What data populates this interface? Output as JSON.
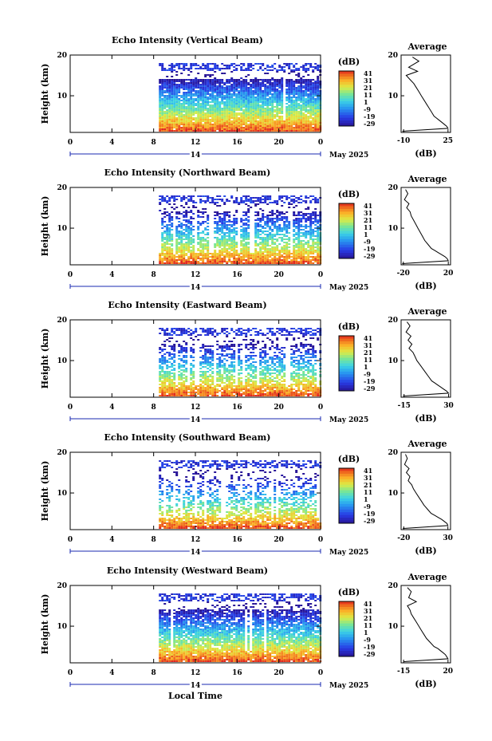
{
  "page": {
    "bottom_xlabel": "Local Time"
  },
  "chart_data": [
    {
      "type": "heatmap",
      "title": "Echo Intensity (Vertical Beam)",
      "ylabel": "Height (km)",
      "x_ticks": [
        "0",
        "4",
        "8",
        "12",
        "16",
        "20",
        "0"
      ],
      "x_range": [
        0,
        24
      ],
      "y_ticks": [
        "20",
        "10"
      ],
      "y_range": [
        1,
        20
      ],
      "date_label": "14",
      "month_label": "May 2025",
      "data_start_hour": 8.5,
      "colorbar": {
        "label": "(dB)",
        "ticks": [
          "41",
          "31",
          "21",
          "11",
          "1",
          "-9",
          "-19",
          "-29"
        ],
        "range": [
          -29,
          41
        ]
      },
      "profile": {
        "type": "line",
        "title": "Average",
        "xlabel": "(dB)",
        "x_ticks": [
          "-10",
          "25"
        ],
        "x_range": [
          -12,
          27
        ],
        "y_ticks": [
          "20",
          "10"
        ],
        "y_range": [
          1,
          20
        ],
        "x": [
          -3,
          2,
          -6,
          1,
          -8,
          -5,
          -2,
          0,
          2,
          4,
          6,
          8,
          10,
          12,
          14,
          16,
          18,
          20,
          22,
          24,
          25,
          -11
        ],
        "y": [
          19.5,
          18.5,
          17,
          16,
          15,
          14,
          13,
          12,
          11,
          10,
          9,
          8,
          7,
          6,
          5,
          4.5,
          4,
          3.5,
          3,
          2.5,
          2,
          1.3
        ]
      }
    },
    {
      "type": "heatmap",
      "title": "Echo Intensity (Northward Beam)",
      "ylabel": "Height (km)",
      "x_ticks": [
        "0",
        "4",
        "8",
        "12",
        "16",
        "20",
        "0"
      ],
      "x_range": [
        0,
        24
      ],
      "y_ticks": [
        "20",
        "10"
      ],
      "y_range": [
        1,
        20
      ],
      "date_label": "14",
      "month_label": "May 2025",
      "data_start_hour": 8.5,
      "colorbar": {
        "label": "(dB)",
        "ticks": [
          "41",
          "31",
          "21",
          "11",
          "1",
          "-9",
          "-19",
          "-29"
        ],
        "range": [
          -29,
          41
        ]
      },
      "profile": {
        "type": "line",
        "title": "Average",
        "xlabel": "(dB)",
        "x_ticks": [
          "-20",
          "20"
        ],
        "x_range": [
          -22,
          22
        ],
        "y_ticks": [
          "20",
          "10"
        ],
        "y_range": [
          1,
          20
        ],
        "x": [
          -18,
          -16,
          -19,
          -15,
          -17,
          -14,
          -13,
          -11,
          -9,
          -7,
          -5,
          -3,
          -1,
          2,
          5,
          8,
          11,
          14,
          17,
          19,
          20,
          -21
        ],
        "y": [
          19.5,
          18.5,
          17,
          16,
          15,
          14,
          13,
          12,
          11,
          10,
          9,
          8,
          7,
          6,
          5,
          4.5,
          4,
          3.5,
          3,
          2.5,
          2,
          1.3
        ]
      }
    },
    {
      "type": "heatmap",
      "title": "Echo Intensity (Eastward Beam)",
      "ylabel": "Height (km)",
      "x_ticks": [
        "0",
        "4",
        "8",
        "12",
        "16",
        "20",
        "0"
      ],
      "x_range": [
        0,
        24
      ],
      "y_ticks": [
        "20",
        "10"
      ],
      "y_range": [
        1,
        20
      ],
      "date_label": "14",
      "month_label": "May 2025",
      "data_start_hour": 8.5,
      "colorbar": {
        "label": "(dB)",
        "ticks": [
          "41",
          "31",
          "21",
          "11",
          "1",
          "-9",
          "-19",
          "-29"
        ],
        "range": [
          -29,
          41
        ]
      },
      "profile": {
        "type": "line",
        "title": "Average",
        "xlabel": "(dB)",
        "x_ticks": [
          "-15",
          "30"
        ],
        "x_range": [
          -18,
          32
        ],
        "y_ticks": [
          "20",
          "10"
        ],
        "y_range": [
          1,
          20
        ],
        "x": [
          -12,
          -9,
          -13,
          -8,
          -11,
          -7,
          -10,
          -6,
          -4,
          -2,
          1,
          4,
          7,
          10,
          13,
          16,
          19,
          22,
          25,
          28,
          30,
          -16
        ],
        "y": [
          19.5,
          18.5,
          17,
          16,
          15,
          14,
          13,
          12,
          11,
          10,
          9,
          8,
          7,
          6,
          5,
          4.5,
          4,
          3.5,
          3,
          2.5,
          2,
          1.3
        ]
      }
    },
    {
      "type": "heatmap",
      "title": "Echo Intensity (Southward Beam)",
      "ylabel": "Height (km)",
      "x_ticks": [
        "0",
        "4",
        "8",
        "12",
        "16",
        "20",
        "0"
      ],
      "x_range": [
        0,
        24
      ],
      "y_ticks": [
        "20",
        "10"
      ],
      "y_range": [
        1,
        20
      ],
      "date_label": "14",
      "month_label": "May 2025",
      "data_start_hour": 8.5,
      "colorbar": {
        "label": "(dB)",
        "ticks": [
          "41",
          "31",
          "21",
          "11",
          "1",
          "-9",
          "-19",
          "-29"
        ],
        "range": [
          -29,
          41
        ]
      },
      "profile": {
        "type": "line",
        "title": "Average",
        "xlabel": "(dB)",
        "x_ticks": [
          "-20",
          "30"
        ],
        "x_range": [
          -23,
          33
        ],
        "y_ticks": [
          "20",
          "10"
        ],
        "y_range": [
          1,
          20
        ],
        "x": [
          -18,
          -16,
          -19,
          -14,
          -17,
          -13,
          -15,
          -11,
          -9,
          -6,
          -3,
          0,
          3,
          7,
          11,
          15,
          19,
          23,
          26,
          29,
          30,
          -21
        ],
        "y": [
          19.5,
          18.5,
          17,
          16,
          15,
          14,
          13,
          12,
          11,
          10,
          9,
          8,
          7,
          6,
          5,
          4.5,
          4,
          3.5,
          3,
          2.5,
          2,
          1.3
        ]
      }
    },
    {
      "type": "heatmap",
      "title": "Echo Intensity (Westward Beam)",
      "ylabel": "Height (km)",
      "x_ticks": [
        "0",
        "4",
        "8",
        "12",
        "16",
        "20",
        "0"
      ],
      "x_range": [
        0,
        24
      ],
      "y_ticks": [
        "20",
        "10"
      ],
      "y_range": [
        1,
        20
      ],
      "date_label": "14",
      "month_label": "May 2025",
      "data_start_hour": 8.5,
      "colorbar": {
        "label": "(dB)",
        "ticks": [
          "41",
          "31",
          "21",
          "11",
          "1",
          "-9",
          "-19",
          "-29"
        ],
        "range": [
          -29,
          41
        ]
      },
      "profile": {
        "type": "line",
        "title": "Average",
        "xlabel": "(dB)",
        "x_ticks": [
          "-15",
          "20"
        ],
        "x_range": [
          -17,
          22
        ],
        "y_ticks": [
          "20",
          "10"
        ],
        "y_range": [
          1,
          20
        ],
        "x": [
          -12,
          -9,
          -11,
          -5,
          -12,
          -10,
          -9,
          -7,
          -5,
          -3,
          -1,
          1,
          3,
          6,
          9,
          12,
          14,
          16,
          18,
          19,
          20,
          -15
        ],
        "y": [
          19.5,
          18.5,
          17,
          16,
          15,
          14,
          13,
          12,
          11,
          10,
          9,
          8,
          7,
          6,
          5,
          4.5,
          4,
          3.5,
          3,
          2.5,
          2,
          1.3
        ]
      }
    }
  ]
}
